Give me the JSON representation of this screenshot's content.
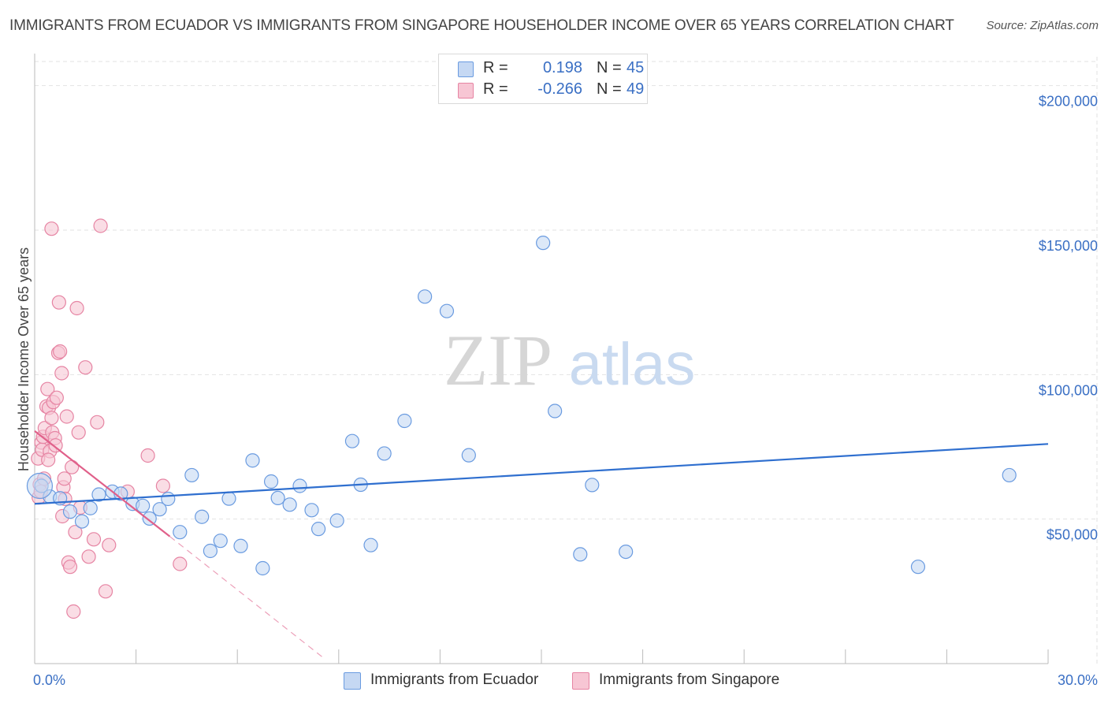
{
  "title": "IMMIGRANTS FROM ECUADOR VS IMMIGRANTS FROM SINGAPORE HOUSEHOLDER INCOME OVER 65 YEARS CORRELATION CHART",
  "source": "Source: ZipAtlas.com",
  "watermark": {
    "zip": "ZIP",
    "atlas": "atlas"
  },
  "colors": {
    "ecuador_fill": "#c5d8f3",
    "ecuador_stroke": "#6a9be0",
    "ecuador_line": "#2f6fcf",
    "singapore_fill": "#f7c6d4",
    "singapore_stroke": "#e684a3",
    "singapore_line": "#e0608a",
    "axis_text": "#3a6fc4",
    "grid": "#e2e2e2"
  },
  "legend": {
    "series": [
      {
        "r_label": "R =",
        "r_value": "0.198",
        "n_label": "N =",
        "n_value": "45"
      },
      {
        "r_label": "R =",
        "r_value": "-0.266",
        "n_label": "N =",
        "n_value": "49"
      }
    ]
  },
  "bottom_legend": [
    "Immigrants from Ecuador",
    "Immigrants from Singapore"
  ],
  "chart_data": {
    "type": "scatter",
    "title": "IMMIGRANTS FROM ECUADOR VS IMMIGRANTS FROM SINGAPORE HOUSEHOLDER INCOME OVER 65 YEARS CORRELATION CHART",
    "xlabel": "",
    "ylabel": "Householder Income Over 65 years",
    "xlim": [
      0,
      30
    ],
    "ylim": [
      0,
      210000
    ],
    "x_tick_labels": [
      {
        "value": 0,
        "label": "0.0%"
      },
      {
        "value": 30,
        "label": "30.0%"
      }
    ],
    "y_ticks": [
      {
        "value": 50000,
        "label": "$50,000"
      },
      {
        "value": 100000,
        "label": "$100,000"
      },
      {
        "value": 150000,
        "label": "$150,000"
      },
      {
        "value": 200000,
        "label": "$200,000"
      }
    ],
    "grid": true,
    "series": [
      {
        "name": "Immigrants from Ecuador",
        "color": "#6a9be0",
        "points": [
          [
            0.2,
            61500
          ],
          [
            0.45,
            57800
          ],
          [
            0.75,
            57200
          ],
          [
            1.05,
            52600
          ],
          [
            1.4,
            49200
          ],
          [
            1.65,
            53800
          ],
          [
            1.9,
            58500
          ],
          [
            2.3,
            59500
          ],
          [
            2.55,
            58800
          ],
          [
            2.9,
            55300
          ],
          [
            3.2,
            54600
          ],
          [
            3.4,
            50200
          ],
          [
            3.7,
            53400
          ],
          [
            3.95,
            57000
          ],
          [
            4.3,
            45500
          ],
          [
            4.65,
            65200
          ],
          [
            4.95,
            50800
          ],
          [
            5.2,
            39000
          ],
          [
            5.5,
            42500
          ],
          [
            5.75,
            57100
          ],
          [
            6.1,
            40700
          ],
          [
            6.45,
            70300
          ],
          [
            6.75,
            33000
          ],
          [
            7.0,
            63000
          ],
          [
            7.2,
            57300
          ],
          [
            7.55,
            55000
          ],
          [
            7.85,
            61500
          ],
          [
            8.2,
            53100
          ],
          [
            8.4,
            46600
          ],
          [
            8.95,
            49500
          ],
          [
            9.4,
            77000
          ],
          [
            9.65,
            61900
          ],
          [
            9.95,
            41000
          ],
          [
            10.35,
            72700
          ],
          [
            10.95,
            84000
          ],
          [
            11.55,
            127000
          ],
          [
            12.2,
            122000
          ],
          [
            12.85,
            72100
          ],
          [
            15.05,
            145600
          ],
          [
            15.4,
            87400
          ],
          [
            16.15,
            37800
          ],
          [
            16.5,
            61800
          ],
          [
            17.5,
            38700
          ],
          [
            26.15,
            33500
          ],
          [
            28.85,
            65200
          ]
        ]
      },
      {
        "name": "Immigrants from Singapore",
        "color": "#e684a3",
        "points": [
          [
            0.1,
            71000
          ],
          [
            0.12,
            57500
          ],
          [
            0.15,
            62000
          ],
          [
            0.18,
            59500
          ],
          [
            0.2,
            76500
          ],
          [
            0.22,
            74000
          ],
          [
            0.25,
            78500
          ],
          [
            0.3,
            81500
          ],
          [
            0.35,
            89000
          ],
          [
            0.38,
            95000
          ],
          [
            0.42,
            88500
          ],
          [
            0.45,
            73500
          ],
          [
            0.5,
            85000
          ],
          [
            0.52,
            80000
          ],
          [
            0.55,
            90500
          ],
          [
            0.6,
            78000
          ],
          [
            0.62,
            75500
          ],
          [
            0.65,
            92000
          ],
          [
            0.7,
            107500
          ],
          [
            0.72,
            125000
          ],
          [
            0.75,
            108000
          ],
          [
            0.8,
            100500
          ],
          [
            0.82,
            51000
          ],
          [
            0.85,
            61000
          ],
          [
            0.88,
            64000
          ],
          [
            0.9,
            57000
          ],
          [
            0.95,
            85500
          ],
          [
            1.0,
            35000
          ],
          [
            1.05,
            33500
          ],
          [
            1.1,
            68000
          ],
          [
            1.15,
            18000
          ],
          [
            1.2,
            45500
          ],
          [
            1.25,
            123000
          ],
          [
            1.3,
            80000
          ],
          [
            1.35,
            54000
          ],
          [
            0.5,
            150500
          ],
          [
            1.5,
            102500
          ],
          [
            1.6,
            37000
          ],
          [
            1.75,
            43000
          ],
          [
            1.85,
            83500
          ],
          [
            1.95,
            151500
          ],
          [
            2.1,
            25000
          ],
          [
            2.2,
            41000
          ],
          [
            2.75,
            59500
          ],
          [
            3.35,
            72000
          ],
          [
            3.8,
            61500
          ],
          [
            4.3,
            34500
          ],
          [
            0.28,
            64000
          ],
          [
            0.4,
            70500
          ]
        ]
      }
    ],
    "trend_lines": [
      {
        "series": "Immigrants from Ecuador",
        "x": [
          0,
          30
        ],
        "y": [
          55300,
          76000
        ],
        "style": "solid"
      },
      {
        "series": "Immigrants from Singapore",
        "x": [
          0,
          4.0
        ],
        "y": [
          80500,
          44000
        ],
        "style": "solid"
      },
      {
        "series": "Immigrants from Singapore",
        "x": [
          4.0,
          8.6
        ],
        "y": [
          44000,
          1500
        ],
        "style": "dashed"
      }
    ]
  }
}
